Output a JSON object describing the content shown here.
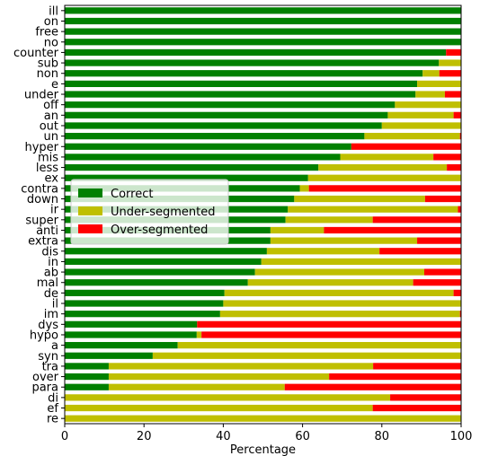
{
  "chart_data": {
    "type": "bar",
    "orientation": "horizontal",
    "stacked": true,
    "title": "",
    "xlabel": "Percentage",
    "ylabel": "",
    "xlim": [
      0,
      100
    ],
    "xticks": [
      "0",
      "20",
      "40",
      "60",
      "80",
      "100"
    ],
    "grid": false,
    "legend_position": "center-left",
    "categories": [
      "ill",
      "on",
      "free",
      "no",
      "counter",
      "sub",
      "non",
      "e",
      "under",
      "off",
      "an",
      "out",
      "un",
      "hyper",
      "mis",
      "less",
      "ex",
      "contra",
      "down",
      "ir",
      "super",
      "anti",
      "extra",
      "dis",
      "in",
      "ab",
      "mal",
      "de",
      "il",
      "im",
      "dys",
      "hypo",
      "a",
      "syn",
      "tra",
      "over",
      "para",
      "di",
      "ef",
      "re"
    ],
    "series": [
      {
        "name": "Correct",
        "color": "#008000",
        "values": [
          100,
          100,
          100,
          100,
          96.2,
          94.4,
          90.3,
          88.9,
          88.5,
          83.3,
          81.5,
          80,
          75.6,
          72.3,
          69.5,
          64,
          61.4,
          59.3,
          57.9,
          56.3,
          55.7,
          51.9,
          51.9,
          51,
          49.6,
          48,
          46.2,
          40.3,
          40,
          39.2,
          33.4,
          33.3,
          28.5,
          22.2,
          11.1,
          11.1,
          11.1,
          0,
          0,
          0
        ]
      },
      {
        "name": "Under-segmented",
        "color": "#bfbf00",
        "values": [
          0,
          0,
          0,
          0,
          0,
          5.6,
          4.2,
          11.1,
          7.4,
          16.7,
          16.6,
          20,
          24.1,
          0,
          23.5,
          32.4,
          38.6,
          2.3,
          33,
          42.9,
          22,
          13.5,
          37,
          28.4,
          50.4,
          42.7,
          41.7,
          57.8,
          60,
          60.5,
          0,
          1.2,
          71.5,
          77.8,
          66.7,
          55.6,
          44.4,
          82.1,
          77.7,
          100
        ]
      },
      {
        "name": "Over-segmented",
        "color": "#ff0000",
        "values": [
          0,
          0,
          0,
          0,
          3.8,
          0,
          5.5,
          0,
          4.1,
          0,
          1.9,
          0,
          0.3,
          27.7,
          7,
          3.6,
          0,
          38.4,
          9.1,
          0.8,
          22.3,
          34.6,
          11.1,
          20.6,
          0,
          9.3,
          12.1,
          1.9,
          0,
          0.3,
          66.6,
          65.5,
          0,
          0,
          22.2,
          33.3,
          44.5,
          17.9,
          22.3,
          0
        ]
      }
    ]
  }
}
